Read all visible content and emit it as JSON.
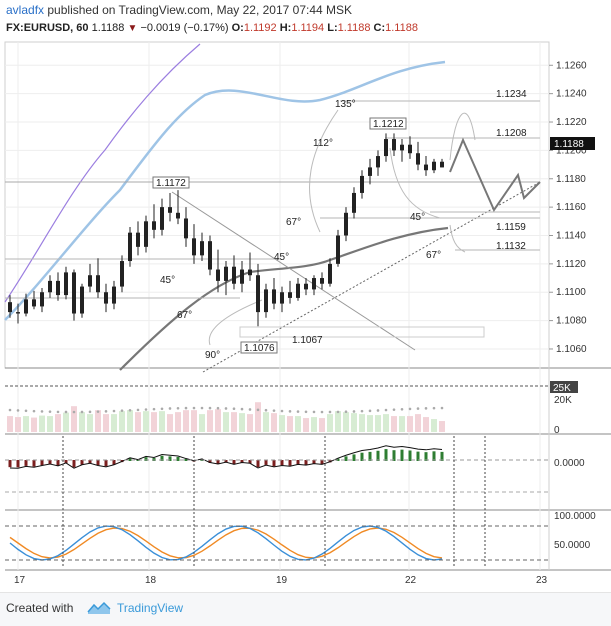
{
  "header": {
    "user": "avladfx",
    "published_text": "published on TradingView.com, May 22, 2017 07:44 MSK",
    "symbol": "FX:EURUSD, 60",
    "last": "1.1188",
    "change": "−0.0019 (−0.17%)",
    "o_label": "O:",
    "o": "1.1192",
    "h_label": "H:",
    "h": "1.1194",
    "l_label": "L:",
    "l": "1.1188",
    "c_label": "C:",
    "c": "1.1188"
  },
  "footer": {
    "created_with": "Created with",
    "brand": "TradingView"
  },
  "colors": {
    "up": "#222222",
    "grid": "#eeeeee",
    "ma_fast": "#9b7ee0",
    "ma_mid": "#9fc4e6",
    "ma_slow": "#777777",
    "vol_up": "#d7ecd3",
    "vol_down": "#f2d3d8",
    "osc_up": "#2e7d32",
    "osc_down": "#7b1f1f",
    "stoch_k": "#3a8fd8",
    "stoch_d": "#f08a24",
    "price_tag": "#111111"
  },
  "chart_data": [
    {
      "type": "candlestick",
      "x_axis": {
        "ticks": [
          "17",
          "18",
          "19",
          "22",
          "23"
        ]
      },
      "y_axis": {
        "ticks": [
          "1.1060",
          "1.1080",
          "1.1100",
          "1.1120",
          "1.1140",
          "1.1160",
          "1.1180",
          "1.1200",
          "1.1220",
          "1.1240",
          "1.1260"
        ],
        "ylim": [
          1.1048,
          1.1275
        ]
      },
      "last_price_label": "1.1188",
      "bars": [
        [
          1.1093,
          1.1098,
          1.1082,
          1.1086
        ],
        [
          1.1086,
          1.1092,
          1.1078,
          1.1085
        ],
        [
          1.1085,
          1.1099,
          1.1083,
          1.1095
        ],
        [
          1.1095,
          1.1101,
          1.1088,
          1.109
        ],
        [
          1.109,
          1.1103,
          1.1086,
          1.11
        ],
        [
          1.11,
          1.1112,
          1.1096,
          1.1108
        ],
        [
          1.1108,
          1.1114,
          1.1094,
          1.1098
        ],
        [
          1.1098,
          1.1118,
          1.1095,
          1.1114
        ],
        [
          1.1114,
          1.1116,
          1.108,
          1.1085
        ],
        [
          1.1085,
          1.1106,
          1.1082,
          1.1104
        ],
        [
          1.1104,
          1.112,
          1.11,
          1.1112
        ],
        [
          1.1112,
          1.1124,
          1.1096,
          1.11
        ],
        [
          1.11,
          1.1106,
          1.1086,
          1.1092
        ],
        [
          1.1092,
          1.1108,
          1.1088,
          1.1104
        ],
        [
          1.1104,
          1.1126,
          1.11,
          1.1122
        ],
        [
          1.1122,
          1.1146,
          1.1118,
          1.1142
        ],
        [
          1.1142,
          1.115,
          1.1126,
          1.1132
        ],
        [
          1.1132,
          1.1154,
          1.1128,
          1.115
        ],
        [
          1.115,
          1.1162,
          1.1138,
          1.1144
        ],
        [
          1.1144,
          1.1166,
          1.114,
          1.116
        ],
        [
          1.116,
          1.117,
          1.115,
          1.1156
        ],
        [
          1.1156,
          1.1172,
          1.1148,
          1.1152
        ],
        [
          1.1152,
          1.116,
          1.1132,
          1.1138
        ],
        [
          1.1138,
          1.1148,
          1.112,
          1.1126
        ],
        [
          1.1126,
          1.1142,
          1.1122,
          1.1136
        ],
        [
          1.1136,
          1.114,
          1.1112,
          1.1116
        ],
        [
          1.1116,
          1.113,
          1.11,
          1.1108
        ],
        [
          1.1108,
          1.1122,
          1.1098,
          1.1118
        ],
        [
          1.1118,
          1.1126,
          1.1102,
          1.1106
        ],
        [
          1.1106,
          1.1122,
          1.11,
          1.1116
        ],
        [
          1.1116,
          1.1128,
          1.1108,
          1.1112
        ],
        [
          1.1112,
          1.112,
          1.1076,
          1.1086
        ],
        [
          1.1086,
          1.1106,
          1.1082,
          1.1102
        ],
        [
          1.1102,
          1.111,
          1.1088,
          1.1092
        ],
        [
          1.1092,
          1.1104,
          1.1086,
          1.11
        ],
        [
          1.11,
          1.1108,
          1.1092,
          1.1096
        ],
        [
          1.1096,
          1.111,
          1.1094,
          1.1106
        ],
        [
          1.1106,
          1.111,
          1.1098,
          1.1102
        ],
        [
          1.1102,
          1.1112,
          1.1098,
          1.111
        ],
        [
          1.111,
          1.1114,
          1.1102,
          1.1106
        ],
        [
          1.1106,
          1.1124,
          1.1104,
          1.112
        ],
        [
          1.112,
          1.1144,
          1.1118,
          1.114
        ],
        [
          1.114,
          1.116,
          1.1136,
          1.1156
        ],
        [
          1.1156,
          1.1174,
          1.1152,
          1.117
        ],
        [
          1.117,
          1.1186,
          1.1166,
          1.1182
        ],
        [
          1.1182,
          1.1194,
          1.1176,
          1.1188
        ],
        [
          1.1188,
          1.12,
          1.1182,
          1.1196
        ],
        [
          1.1196,
          1.1212,
          1.1192,
          1.1208
        ],
        [
          1.1208,
          1.1212,
          1.1196,
          1.12
        ],
        [
          1.12,
          1.1208,
          1.1192,
          1.1204
        ],
        [
          1.1204,
          1.121,
          1.1194,
          1.1198
        ],
        [
          1.1198,
          1.1206,
          1.1186,
          1.119
        ],
        [
          1.119,
          1.1196,
          1.1182,
          1.1186
        ],
        [
          1.1186,
          1.1194,
          1.1184,
          1.1192
        ],
        [
          1.1192,
          1.1194,
          1.1188,
          1.1188
        ]
      ],
      "annotations": {
        "price_labels": [
          "1.1172",
          "1.1212",
          "1.1076",
          "1.1234",
          "1.1208",
          "1.1159",
          "1.1132",
          "1.1067"
        ],
        "angle_labels": [
          "135°",
          "112°",
          "67°",
          "45°",
          "45°",
          "67°",
          "45°",
          "67°",
          "90°"
        ]
      }
    },
    {
      "type": "bar",
      "name": "volume",
      "y_axis": {
        "ticks": [
          "20K",
          "0"
        ],
        "marker": "25K"
      }
    },
    {
      "type": "bar",
      "name": "oscillator",
      "y_axis": {
        "ticks": [
          "0.0000"
        ]
      }
    },
    {
      "type": "line",
      "name": "stochastic",
      "y_axis": {
        "ticks": [
          "100.0000",
          "50.0000"
        ]
      }
    }
  ]
}
